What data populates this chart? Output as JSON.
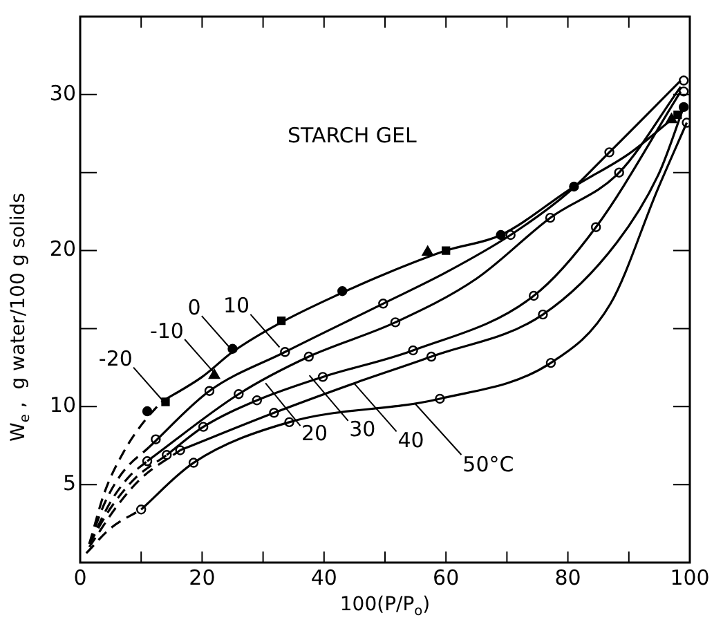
{
  "chart_data": {
    "type": "line",
    "title": "STARCH GEL",
    "xlabel": "100(P/P$_{o}$)",
    "ylabel": "W$_{e}$ ,  g water/100 g solids",
    "xlim": [
      0,
      100
    ],
    "ylim": [
      0,
      35
    ],
    "xticks": [
      0,
      {
        "value": 10,
        "label": null
      },
      20,
      {
        "value": 30,
        "label": null
      },
      40,
      {
        "value": 50,
        "label": null
      },
      60,
      {
        "value": 70,
        "label": null
      },
      80,
      {
        "value": 90,
        "label": null
      },
      100
    ],
    "yticks": [
      5,
      10,
      {
        "value": 15,
        "label": null
      },
      20,
      {
        "value": 25,
        "label": null
      },
      30
    ],
    "grid": false,
    "legend": false,
    "series": [
      {
        "type": "line",
        "line_style": "dashed",
        "marker": "none",
        "color": "#000000",
        "x": [
          1.5,
          4,
          7,
          10,
          13.3
        ],
        "values": [
          1.2,
          4.5,
          7,
          8.8,
          10.3
        ]
      },
      {
        "type": "line",
        "line_style": "solid",
        "marker": "none",
        "color": "#000000",
        "x": [
          13.3,
          20,
          25,
          33,
          43,
          50,
          60,
          69,
          81,
          90,
          97
        ],
        "values": [
          10.3,
          11.9,
          13.5,
          15.4,
          17.3,
          18.5,
          20,
          21,
          24.1,
          26.2,
          28.4
        ]
      },
      {
        "type": "line",
        "line_style": "dashed",
        "marker": "none",
        "color": "#000000",
        "x": [
          1.5,
          4,
          7,
          11.3
        ],
        "values": [
          1.2,
          3.8,
          5.8,
          7.4
        ]
      },
      {
        "type": "line",
        "line_style": "solid",
        "marker": "none",
        "color": "#000000",
        "x": [
          11.3,
          21.2,
          33.6,
          49.7,
          60,
          70.6,
          80,
          86.8,
          98.5
        ],
        "values": [
          7.4,
          11,
          13.5,
          16.6,
          18.6,
          21,
          23.7,
          26.3,
          30.9
        ]
      },
      {
        "type": "line",
        "line_style": "dashed",
        "marker": "none",
        "color": "#000000",
        "x": [
          1.5,
          5,
          8,
          11
        ],
        "values": [
          1.2,
          3.9,
          5.5,
          6.5
        ]
      },
      {
        "type": "line",
        "line_style": "solid",
        "marker": "none",
        "color": "#000000",
        "x": [
          11,
          26,
          37.5,
          51.7,
          65,
          77.1,
          88.4,
          98.5
        ],
        "values": [
          6.5,
          10.8,
          13.2,
          15.4,
          18.2,
          22.1,
          25,
          30.5
        ]
      },
      {
        "type": "line",
        "line_style": "dashed",
        "marker": "none",
        "color": "#000000",
        "x": [
          1.5,
          5,
          9,
          14.2
        ],
        "values": [
          1.2,
          3.5,
          5.4,
          6.9
        ]
      },
      {
        "type": "line",
        "line_style": "solid",
        "marker": "none",
        "color": "#000000",
        "x": [
          14.2,
          20.2,
          29,
          39.8,
          54.6,
          74.4,
          84.6,
          98.5
        ],
        "values": [
          6.9,
          8.7,
          10.4,
          11.9,
          13.6,
          17.1,
          21.5,
          30.2
        ]
      },
      {
        "type": "line",
        "line_style": "dashed",
        "marker": "none",
        "color": "#000000",
        "x": [
          1.5,
          6,
          10,
          16.4
        ],
        "values": [
          1,
          3.6,
          5.4,
          7.2
        ]
      },
      {
        "type": "line",
        "line_style": "solid",
        "marker": "none",
        "color": "#000000",
        "x": [
          16.4,
          31.8,
          45,
          57.6,
          75.9,
          88,
          95,
          99
        ],
        "values": [
          7.2,
          9.6,
          11.5,
          13.2,
          15.9,
          20.5,
          25,
          29.2
        ]
      },
      {
        "type": "line",
        "line_style": "dashed",
        "marker": "none",
        "color": "#000000",
        "x": [
          1,
          5,
          10
        ],
        "values": [
          0.6,
          2.2,
          3.4
        ]
      },
      {
        "type": "line",
        "line_style": "solid",
        "marker": "none",
        "color": "#000000",
        "x": [
          10,
          18.6,
          34.3,
          59,
          77.2,
          87,
          94.7,
          99.5
        ],
        "values": [
          3.4,
          6.4,
          9,
          10.5,
          12.8,
          16.6,
          23.9,
          28.2
        ]
      },
      {
        "type": "scatter",
        "marker": "circle",
        "color": "#000000",
        "x": [
          11,
          25,
          43,
          69,
          81,
          99
        ],
        "values": [
          9.7,
          13.7,
          17.4,
          21,
          24.1,
          29.2
        ]
      },
      {
        "type": "scatter",
        "marker": "square",
        "color": "#000000",
        "x": [
          14,
          33,
          60,
          98
        ],
        "values": [
          10.3,
          15.5,
          20,
          28.7
        ]
      },
      {
        "type": "scatter",
        "marker": "triangle",
        "color": "#000000",
        "x": [
          22,
          57,
          97
        ],
        "values": [
          12,
          19.9,
          28.4
        ]
      },
      {
        "type": "scatter",
        "marker": "circle",
        "color": "#ffffff",
        "x": [
          12.4,
          21.2,
          33.6,
          49.7,
          70.6,
          86.8,
          99,
          11,
          26,
          37.5,
          51.7,
          77.1,
          88.4,
          99,
          14.2,
          20.2,
          29,
          39.8,
          54.6,
          74.4,
          84.6,
          16.4,
          31.8,
          57.6,
          75.9,
          10,
          18.6,
          34.3,
          59,
          77.2,
          99.5
        ],
        "values": [
          7.9,
          11,
          13.5,
          16.6,
          21,
          26.3,
          30.9,
          6.5,
          10.8,
          13.2,
          15.4,
          22.1,
          25,
          30.2,
          6.9,
          8.7,
          10.4,
          11.9,
          13.6,
          17.1,
          21.5,
          7.2,
          9.6,
          13.2,
          15.9,
          3.4,
          6.4,
          9,
          10.5,
          12.8,
          28.2
        ]
      }
    ],
    "annotations": [
      {
        "text": "-20",
        "x": 13.5,
        "y": 10.4
      },
      {
        "text": "-10",
        "x": 21.9,
        "y": 12.2
      },
      {
        "text": "0",
        "x": 24.7,
        "y": 13.7
      },
      {
        "text": "10",
        "x": 32.7,
        "y": 13.8
      },
      {
        "text": "20",
        "x": 30.4,
        "y": 11.5
      },
      {
        "text": "30",
        "x": 37.6,
        "y": 12
      },
      {
        "text": "40",
        "x": 44.9,
        "y": 11.5
      },
      {
        "text": "50°C",
        "x": 54.9,
        "y": 10.2
      }
    ]
  }
}
